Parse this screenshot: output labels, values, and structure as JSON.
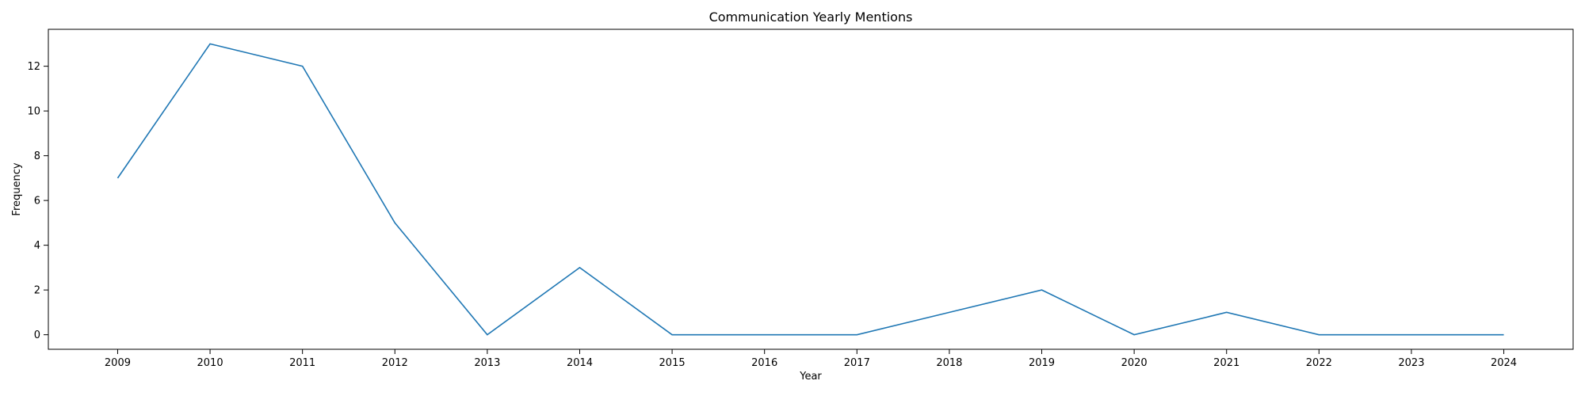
{
  "chart_data": {
    "type": "line",
    "title": "Communication Yearly Mentions",
    "xlabel": "Year",
    "ylabel": "Frequency",
    "x": [
      2009,
      2010,
      2011,
      2012,
      2013,
      2014,
      2015,
      2016,
      2017,
      2018,
      2019,
      2020,
      2021,
      2022,
      2023,
      2024
    ],
    "series": [
      {
        "values": [
          7,
          13,
          12,
          5,
          0,
          3,
          0,
          0,
          0,
          1,
          2,
          0,
          1,
          0,
          0,
          0
        ],
        "color": "#1f77b4"
      }
    ],
    "xlim": [
      2008.25,
      2024.75
    ],
    "ylim": [
      -0.65,
      13.65
    ],
    "yticks": [
      0,
      2,
      4,
      6,
      8,
      10,
      12
    ],
    "grid": false,
    "legend": "none"
  }
}
